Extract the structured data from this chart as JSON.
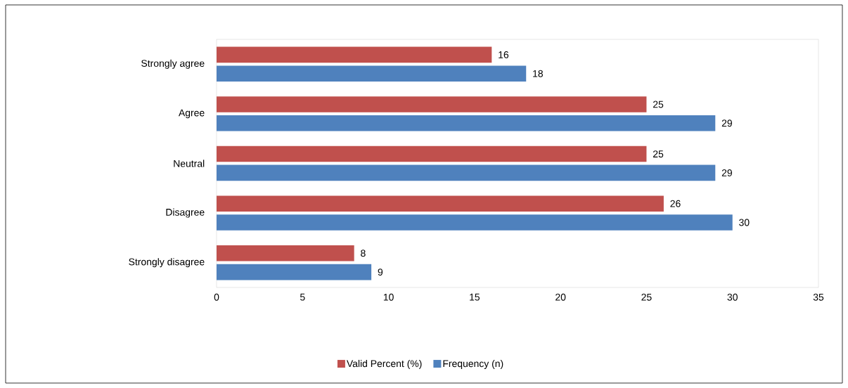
{
  "chart_data": {
    "type": "bar",
    "orientation": "horizontal",
    "categories": [
      "Strongly agree",
      "Agree",
      "Neutral",
      "Disagree",
      "Strongly disagree"
    ],
    "series": [
      {
        "name": "Valid Percent (%)",
        "color": "#c0504d",
        "values": [
          16,
          25,
          25,
          26,
          8
        ]
      },
      {
        "name": "Frequency (n)",
        "color": "#4f81bd",
        "values": [
          18,
          29,
          29,
          30,
          9
        ]
      }
    ],
    "xlim": [
      0,
      35
    ],
    "xticks": [
      0,
      5,
      10,
      15,
      20,
      25,
      30,
      35
    ],
    "data_labels": true,
    "legend": "bottom"
  }
}
